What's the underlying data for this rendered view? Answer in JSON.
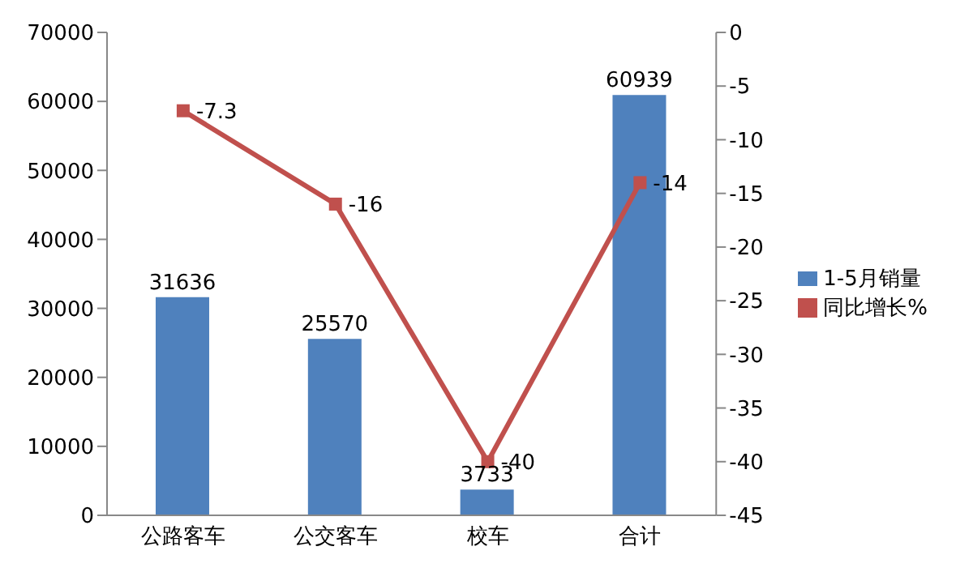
{
  "chart_data": {
    "type": "bar",
    "categories": [
      "公路客车",
      "公交客车",
      "校车",
      "合计"
    ],
    "series": [
      {
        "name": "1-5月销量",
        "color": "#4f81bd",
        "values": [
          31636,
          25570,
          3733,
          60939
        ]
      },
      {
        "name": "同比增长%",
        "type": "line",
        "axis": "y2",
        "color": "#c0504d",
        "values": [
          -7.3,
          -16,
          -40,
          -14
        ]
      }
    ],
    "ylim": [
      0,
      70000
    ],
    "yticks": [
      0,
      10000,
      20000,
      30000,
      40000,
      50000,
      60000,
      70000
    ],
    "y2lim": [
      -45,
      0
    ],
    "y2ticks": [
      -45,
      -40,
      -35,
      -30,
      -25,
      -20,
      -15,
      -10,
      -5,
      0
    ],
    "legend": "right",
    "marker": "square",
    "data_labels": true
  }
}
